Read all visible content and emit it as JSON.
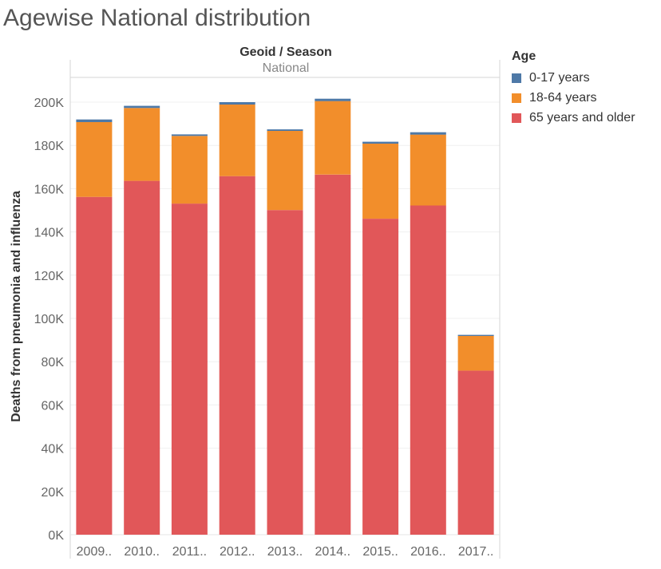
{
  "title": "Agewise National distribution",
  "header": {
    "caption": "Geoid / Season",
    "value": "National"
  },
  "legend": {
    "title": "Age",
    "items": [
      {
        "label": "0-17 years",
        "color": "#4e79a7"
      },
      {
        "label": "18-64 years",
        "color": "#f28e2b"
      },
      {
        "label": "65 years and older",
        "color": "#e15759"
      }
    ]
  },
  "chart_data": {
    "type": "bar",
    "stacked": true,
    "title": "Agewise National distribution",
    "xlabel": "",
    "ylabel": "Deaths from pneumonia and influenza",
    "ylim": [
      0,
      210000
    ],
    "yticks": [
      "0K",
      "20K",
      "40K",
      "60K",
      "80K",
      "100K",
      "120K",
      "140K",
      "160K",
      "180K",
      "200K"
    ],
    "categories": [
      "2009..",
      "2010..",
      "2011..",
      "2012..",
      "2013..",
      "2014..",
      "2015..",
      "2016..",
      "2017.."
    ],
    "series": [
      {
        "name": "65 years and older",
        "color": "#e15759",
        "values": [
          156200,
          163600,
          153100,
          165800,
          150100,
          166500,
          146100,
          152200,
          75900
        ]
      },
      {
        "name": "18-64 years",
        "color": "#f28e2b",
        "values": [
          34600,
          33700,
          31300,
          33100,
          36600,
          34000,
          34700,
          32800,
          16000
        ]
      },
      {
        "name": "0-17 years",
        "color": "#4e79a7",
        "values": [
          1200,
          1000,
          700,
          1100,
          700,
          1100,
          900,
          1100,
          500
        ]
      }
    ],
    "grid": true,
    "legend": "right"
  }
}
